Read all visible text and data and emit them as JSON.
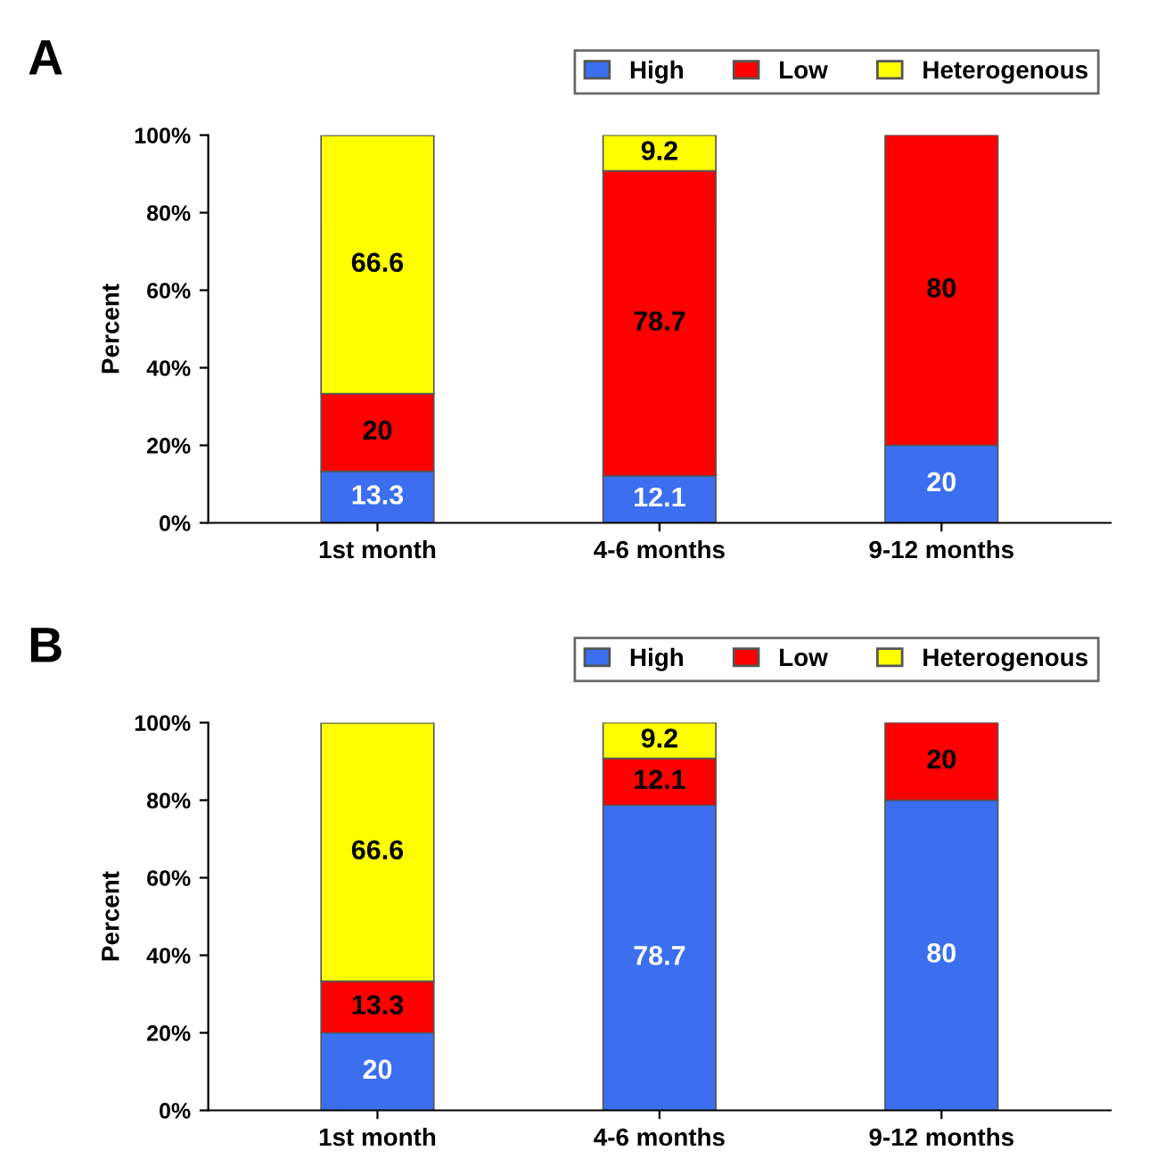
{
  "chart_data": [
    {
      "type": "bar",
      "stacked": true,
      "title": "A",
      "ylabel": "Percent",
      "categories": [
        "1st month",
        "4-6 months",
        "9-12 months"
      ],
      "ylim": [
        0,
        100
      ],
      "yticks": [
        {
          "value": 0,
          "label": "0%"
        },
        {
          "value": 20,
          "label": "20%"
        },
        {
          "value": 40,
          "label": "40%"
        },
        {
          "value": 60,
          "label": "60%"
        },
        {
          "value": 80,
          "label": "80%"
        },
        {
          "value": 100,
          "label": "100%"
        }
      ],
      "legend": "top right",
      "grid": false,
      "series": [
        {
          "name": "High",
          "color": "#3b6ff0",
          "values": [
            13.3,
            12.1,
            20
          ],
          "value_labels": [
            "13.3",
            "12.1",
            "20"
          ]
        },
        {
          "name": "Low",
          "color": "#ff0000",
          "values": [
            20,
            78.7,
            80
          ],
          "value_labels": [
            "20",
            "78.7",
            "80"
          ]
        },
        {
          "name": "Heterogenous",
          "color": "#ffff00",
          "values": [
            66.6,
            9.2,
            0
          ],
          "value_labels": [
            "66.6",
            "9.2",
            null
          ]
        }
      ]
    },
    {
      "type": "bar",
      "stacked": true,
      "title": "B",
      "ylabel": "Percent",
      "categories": [
        "1st month",
        "4-6 months",
        "9-12 months"
      ],
      "ylim": [
        0,
        100
      ],
      "yticks": [
        {
          "value": 0,
          "label": "0%"
        },
        {
          "value": 20,
          "label": "20%"
        },
        {
          "value": 40,
          "label": "40%"
        },
        {
          "value": 60,
          "label": "60%"
        },
        {
          "value": 80,
          "label": "80%"
        },
        {
          "value": 100,
          "label": "100%"
        }
      ],
      "legend": "top right",
      "grid": false,
      "series": [
        {
          "name": "High",
          "color": "#3b6ff0",
          "values": [
            20,
            78.7,
            80
          ],
          "value_labels": [
            "20",
            "78.7",
            "80"
          ]
        },
        {
          "name": "Low",
          "color": "#ff0000",
          "values": [
            13.3,
            12.1,
            20
          ],
          "value_labels": [
            "13.3",
            "12.1",
            "20"
          ]
        },
        {
          "name": "Heterogenous",
          "color": "#ffff00",
          "values": [
            66.6,
            9.2,
            0
          ],
          "value_labels": [
            "66.6",
            "9.2",
            null
          ]
        }
      ]
    }
  ]
}
